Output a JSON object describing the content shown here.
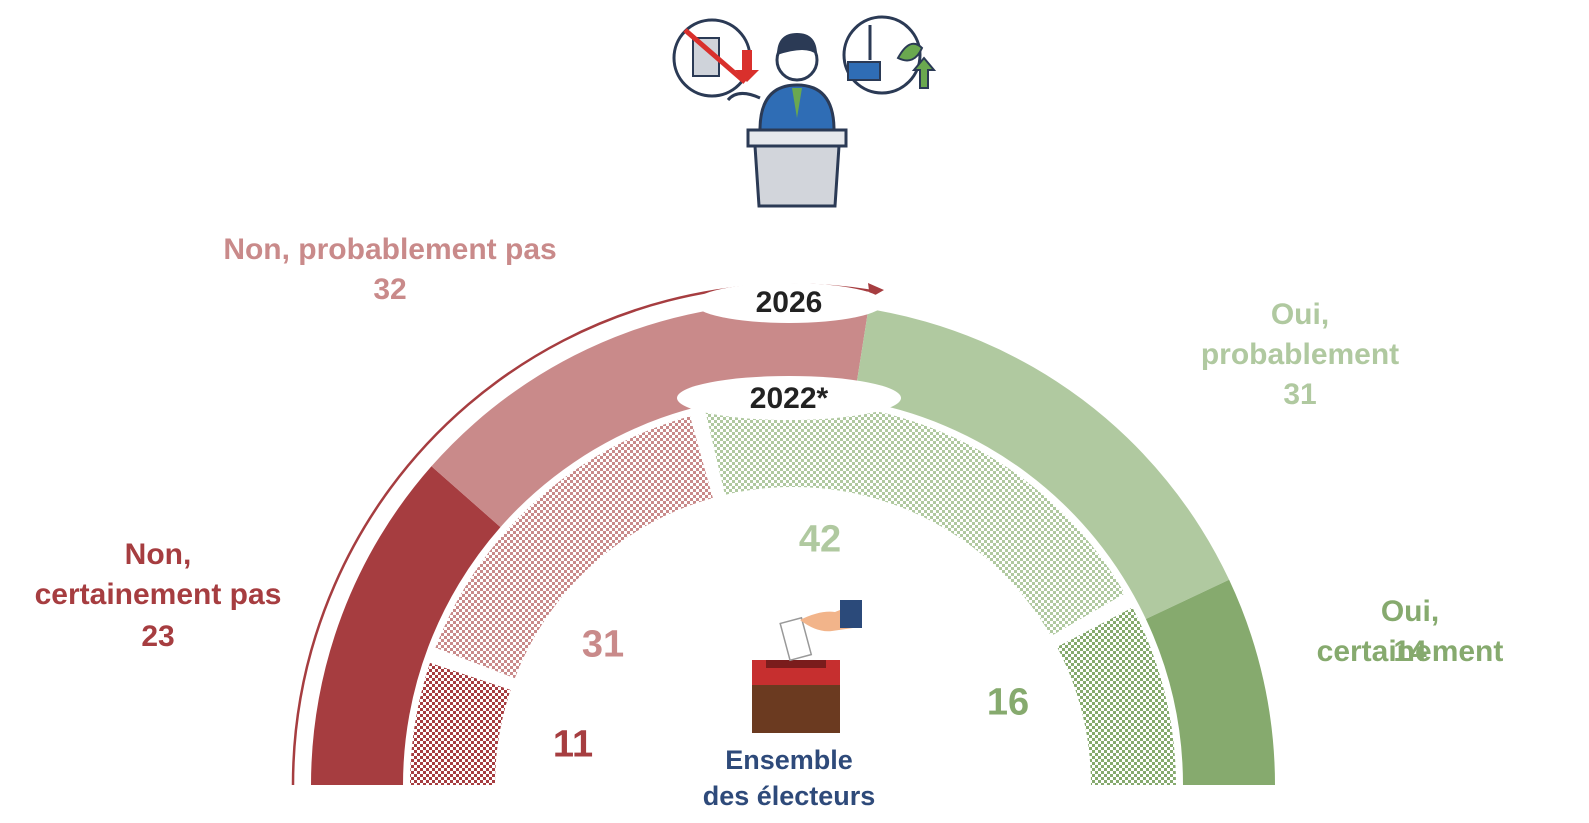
{
  "chart_data": {
    "type": "semidonut",
    "categories": [
      "Non,\ncertainement pas",
      "Non, probablement pas",
      "Oui,\nprobablement",
      "Oui, certainement"
    ],
    "colors": [
      "#a63d40",
      "#c98a8a",
      "#b0c9a0",
      "#86aa6e"
    ],
    "series": [
      {
        "name": "2026",
        "values": [
          23,
          32,
          31,
          14
        ]
      },
      {
        "name": "2022*",
        "values": [
          11,
          31,
          42,
          16
        ]
      }
    ],
    "caption": "Ensemble\ndes électeurs"
  }
}
